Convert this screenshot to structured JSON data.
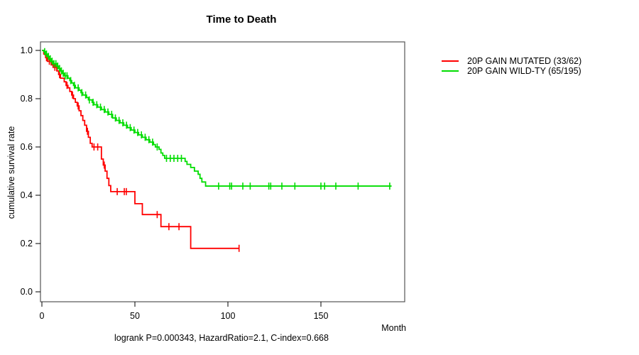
{
  "chart_data": {
    "type": "line",
    "subtype": "kaplan-meier-step-curves",
    "title": "Time to Death",
    "xlabel": "Month",
    "ylabel": "cumulative survival rate",
    "caption": "logrank P=0.000343, HazardRatio=2.1, C-index=0.668",
    "xlim": [
      0,
      195
    ],
    "ylim": [
      0.0,
      1.0
    ],
    "xticks": [
      0,
      50,
      100,
      150
    ],
    "yticks": [
      1.0,
      0.8,
      0.6,
      0.4,
      0.2,
      0.0
    ],
    "grid": false,
    "legend_position": "right-outside",
    "censor_mark": "vertical-tick",
    "series": [
      {
        "name": "20P GAIN MUTATED (33/62)",
        "color": "#ff0000",
        "end_month": 106,
        "steps": [
          [
            0,
            1.0
          ],
          [
            1,
            0.985
          ],
          [
            2,
            0.97
          ],
          [
            3,
            0.955
          ],
          [
            5,
            0.94
          ],
          [
            6,
            0.93
          ],
          [
            8,
            0.915
          ],
          [
            9,
            0.9
          ],
          [
            10,
            0.885
          ],
          [
            12,
            0.87
          ],
          [
            13,
            0.855
          ],
          [
            14,
            0.845
          ],
          [
            15,
            0.83
          ],
          [
            16,
            0.815
          ],
          [
            17,
            0.8
          ],
          [
            18,
            0.785
          ],
          [
            19,
            0.77
          ],
          [
            20,
            0.75
          ],
          [
            21,
            0.73
          ],
          [
            22,
            0.71
          ],
          [
            23,
            0.69
          ],
          [
            24,
            0.665
          ],
          [
            25,
            0.64
          ],
          [
            26,
            0.615
          ],
          [
            27,
            0.6
          ],
          [
            32,
            0.55
          ],
          [
            33,
            0.525
          ],
          [
            34,
            0.5
          ],
          [
            35,
            0.47
          ],
          [
            36,
            0.44
          ],
          [
            37,
            0.415
          ],
          [
            50,
            0.365
          ],
          [
            54,
            0.32
          ],
          [
            64,
            0.27
          ],
          [
            80,
            0.18
          ]
        ],
        "censor_months": [
          2.5,
          4,
          7,
          9.5,
          13.5,
          16.5,
          19.5,
          24.5,
          28,
          30,
          33.5,
          40.5,
          44.3,
          45.4,
          62,
          68.3,
          73.7,
          106
        ]
      },
      {
        "name": "20P GAIN WILD-TY (65/195)",
        "color": "#00dd00",
        "end_month": 188,
        "steps": [
          [
            0,
            1.0
          ],
          [
            1,
            0.995
          ],
          [
            2,
            0.985
          ],
          [
            3,
            0.975
          ],
          [
            4,
            0.965
          ],
          [
            5,
            0.955
          ],
          [
            6,
            0.945
          ],
          [
            8,
            0.935
          ],
          [
            9,
            0.925
          ],
          [
            10,
            0.915
          ],
          [
            11,
            0.905
          ],
          [
            12,
            0.895
          ],
          [
            14,
            0.885
          ],
          [
            15,
            0.875
          ],
          [
            16,
            0.865
          ],
          [
            17,
            0.855
          ],
          [
            18,
            0.845
          ],
          [
            20,
            0.835
          ],
          [
            21,
            0.825
          ],
          [
            22,
            0.815
          ],
          [
            24,
            0.805
          ],
          [
            25,
            0.795
          ],
          [
            27,
            0.785
          ],
          [
            28,
            0.775
          ],
          [
            30,
            0.765
          ],
          [
            32,
            0.755
          ],
          [
            34,
            0.745
          ],
          [
            36,
            0.735
          ],
          [
            38,
            0.72
          ],
          [
            40,
            0.71
          ],
          [
            42,
            0.7
          ],
          [
            44,
            0.69
          ],
          [
            46,
            0.68
          ],
          [
            48,
            0.67
          ],
          [
            50,
            0.66
          ],
          [
            52,
            0.65
          ],
          [
            54,
            0.64
          ],
          [
            56,
            0.63
          ],
          [
            58,
            0.62
          ],
          [
            60,
            0.61
          ],
          [
            61,
            0.6
          ],
          [
            63,
            0.59
          ],
          [
            64,
            0.575
          ],
          [
            65,
            0.565
          ],
          [
            66,
            0.553
          ],
          [
            77,
            0.54
          ],
          [
            78,
            0.528
          ],
          [
            80,
            0.515
          ],
          [
            82,
            0.5
          ],
          [
            84,
            0.487
          ],
          [
            85,
            0.47
          ],
          [
            86,
            0.455
          ],
          [
            88,
            0.438
          ]
        ],
        "censor_months": [
          1.5,
          2.5,
          3.5,
          4.5,
          5.5,
          6.5,
          7.5,
          8.5,
          9.5,
          10.5,
          11.5,
          12.5,
          13.5,
          15.5,
          17.5,
          19.5,
          21.5,
          23.5,
          25.5,
          27.5,
          29.5,
          31.5,
          33.5,
          35.5,
          37.5,
          39.5,
          41.5,
          43.5,
          45.5,
          47.5,
          49.5,
          51.5,
          53.5,
          55.5,
          57.5,
          59.5,
          62,
          67,
          69,
          71,
          73,
          75,
          95,
          101,
          102,
          108,
          112,
          122,
          123,
          129,
          136,
          150,
          152,
          158,
          170,
          187
        ]
      }
    ]
  },
  "colors": {
    "mutated": "#ff0000",
    "wildtype": "#00dd00",
    "axis": "#000000",
    "plot_border": "#555555"
  }
}
